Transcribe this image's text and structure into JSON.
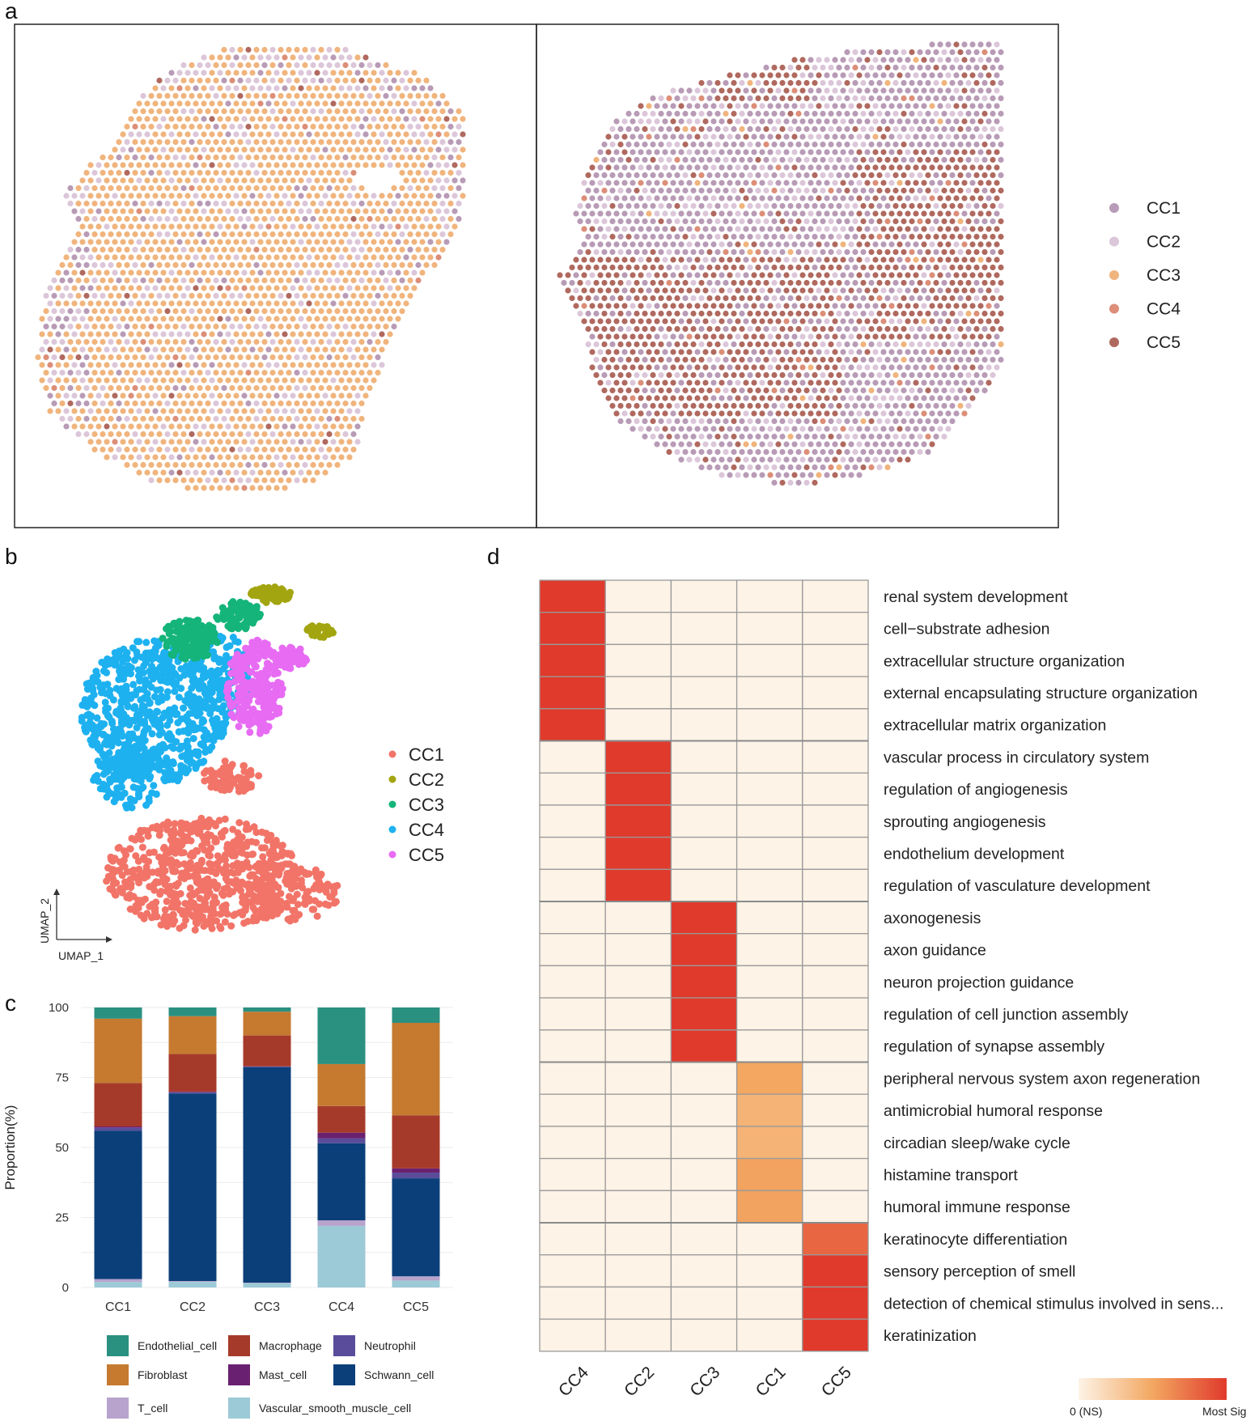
{
  "panels": {
    "a": "a",
    "b": "b",
    "c": "c",
    "d": "d"
  },
  "colors": {
    "spatial": {
      "CC1": "#b89bb6",
      "CC2": "#dcc6d9",
      "CC3": "#f0b47d",
      "CC4": "#dc8e78",
      "CC5": "#b0695f"
    },
    "umap": {
      "CC1": "#f27468",
      "CC2": "#a3a510",
      "CC3": "#14b47a",
      "CC4": "#1eb1f0",
      "CC5": "#e76bf3"
    },
    "celltypes": {
      "Endothelial_cell": "#2a9080",
      "Fibroblast": "#c57a30",
      "Macrophage": "#a63a2a",
      "Mast_cell": "#6a2070",
      "Neutrophil": "#5a4c9a",
      "Schwann_cell": "#0b3f7a",
      "T_cell": "#b7a3cc",
      "Vascular_smooth_muscle_cell": "#9ccad6"
    },
    "heat": {
      "low": "#fdf3e6",
      "mid": "#f3a761",
      "high": "#e03a2c"
    }
  },
  "spatial_legend": [
    "CC1",
    "CC2",
    "CC3",
    "CC4",
    "CC5"
  ],
  "umap": {
    "legend": [
      "CC1",
      "CC2",
      "CC3",
      "CC4",
      "CC5"
    ],
    "xlabel": "UMAP_1",
    "ylabel": "UMAP_2"
  },
  "chart_data": [
    {
      "type": "bar",
      "stacked": true,
      "categories": [
        "CC1",
        "CC2",
        "CC3",
        "CC4",
        "CC5"
      ],
      "ylabel": "Proportion(%)",
      "ylim": [
        0,
        100
      ],
      "yticks": [
        "0",
        "25",
        "50",
        "75",
        "100"
      ],
      "grid": true,
      "legend_position": "bottom",
      "series": [
        {
          "name": "Vascular_smooth_muscle_cell",
          "values": [
            2,
            2,
            1.5,
            22,
            2.5
          ]
        },
        {
          "name": "T_cell",
          "values": [
            1,
            0.3,
            0.2,
            2,
            1.5
          ]
        },
        {
          "name": "Schwann_cell",
          "values": [
            53,
            67,
            77,
            27.5,
            35
          ]
        },
        {
          "name": "Neutrophil",
          "values": [
            1,
            0.4,
            0.2,
            1.8,
            2
          ]
        },
        {
          "name": "Mast_cell",
          "values": [
            0.5,
            0.2,
            0.1,
            2,
            1.5
          ]
        },
        {
          "name": "Macrophage",
          "values": [
            15.5,
            13.5,
            11,
            9.5,
            19
          ]
        },
        {
          "name": "Fibroblast",
          "values": [
            23,
            13.5,
            8.5,
            15,
            33
          ]
        },
        {
          "name": "Endothelial_cell",
          "values": [
            4,
            3.1,
            1.5,
            20.2,
            5.5
          ]
        }
      ]
    },
    {
      "type": "heatmap",
      "columns": [
        "CC4",
        "CC2",
        "CC3",
        "CC1",
        "CC5"
      ],
      "rows": [
        "renal system development",
        "cell−substrate adhesion",
        "extracellular structure organization",
        "external encapsulating structure organization",
        "extracellular matrix organization",
        "vascular process in circulatory system",
        "regulation of angiogenesis",
        "sprouting angiogenesis",
        "endothelium development",
        "regulation of vasculature development",
        "axonogenesis",
        "axon guidance",
        "neuron projection guidance",
        "regulation of cell junction assembly",
        "regulation of synapse assembly",
        "peripheral nervous system axon regeneration",
        "antimicrobial humoral response",
        "circadian sleep/wake cycle",
        "histamine transport",
        "humoral immune response",
        "keratinocyte differentiation",
        "sensory perception of smell",
        "detection of chemical stimulus involved in sens...",
        "keratinization"
      ],
      "values": [
        [
          1,
          0,
          0,
          0,
          0
        ],
        [
          1,
          0,
          0,
          0,
          0
        ],
        [
          1,
          0,
          0,
          0,
          0
        ],
        [
          1,
          0,
          0,
          0,
          0
        ],
        [
          1,
          0,
          0,
          0,
          0
        ],
        [
          0,
          1,
          0,
          0,
          0
        ],
        [
          0,
          1,
          0,
          0,
          0
        ],
        [
          0,
          1,
          0,
          0,
          0
        ],
        [
          0,
          1,
          0,
          0,
          0
        ],
        [
          0,
          1,
          0,
          0,
          0
        ],
        [
          0,
          0,
          1,
          0,
          0
        ],
        [
          0,
          0,
          1,
          0,
          0
        ],
        [
          0,
          0,
          1,
          0,
          0
        ],
        [
          0,
          0,
          1,
          0,
          0
        ],
        [
          0,
          0,
          1,
          0,
          0
        ],
        [
          0,
          0,
          0,
          0.5,
          0
        ],
        [
          0,
          0,
          0,
          0.42,
          0
        ],
        [
          0,
          0,
          0,
          0.42,
          0
        ],
        [
          0,
          0,
          0,
          0.52,
          0
        ],
        [
          0,
          0,
          0,
          0.52,
          0
        ],
        [
          0,
          0,
          0,
          0,
          0.8
        ],
        [
          0,
          0,
          0,
          0,
          1
        ],
        [
          0,
          0,
          0,
          0,
          1
        ],
        [
          0,
          0,
          0,
          0,
          1
        ]
      ],
      "scale_labels": [
        "0 (NS)",
        "Most Sig"
      ]
    }
  ]
}
